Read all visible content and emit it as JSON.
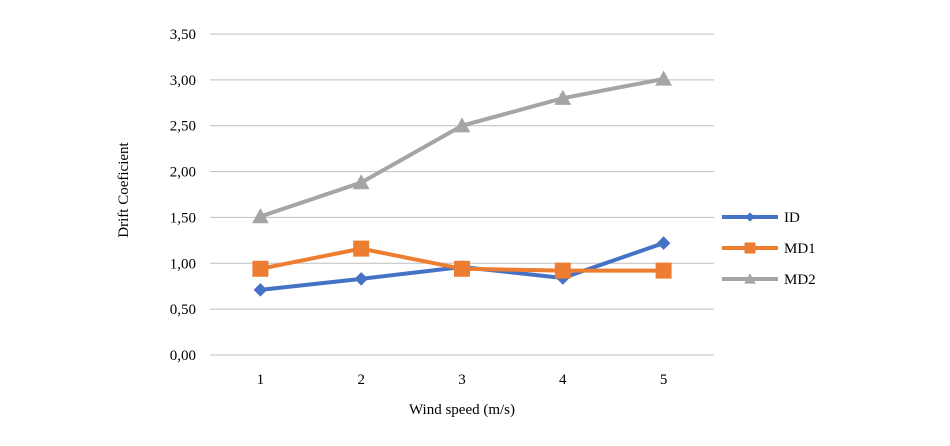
{
  "chart_data": {
    "type": "line",
    "title": "",
    "xlabel": "Wind speed (m/s)",
    "ylabel": "Drift Coeficient",
    "categories": [
      "1",
      "2",
      "3",
      "4",
      "5"
    ],
    "ylim": [
      0,
      3.5
    ],
    "yticks": [
      "0,00",
      "0,50",
      "1,00",
      "1,50",
      "2,00",
      "2,50",
      "3,00",
      "3,50"
    ],
    "grid": true,
    "legend_position": "right",
    "series": [
      {
        "name": "ID",
        "color": "#4472C4",
        "marker": "diamond",
        "values": [
          0.71,
          0.83,
          0.96,
          0.84,
          1.22
        ]
      },
      {
        "name": "MD1",
        "color": "#ED7D31",
        "marker": "square",
        "values": [
          0.94,
          1.16,
          0.94,
          0.92,
          0.92
        ]
      },
      {
        "name": "MD2",
        "color": "#A5A5A5",
        "marker": "triangle",
        "values": [
          1.51,
          1.88,
          2.5,
          2.8,
          3.01
        ]
      }
    ]
  }
}
